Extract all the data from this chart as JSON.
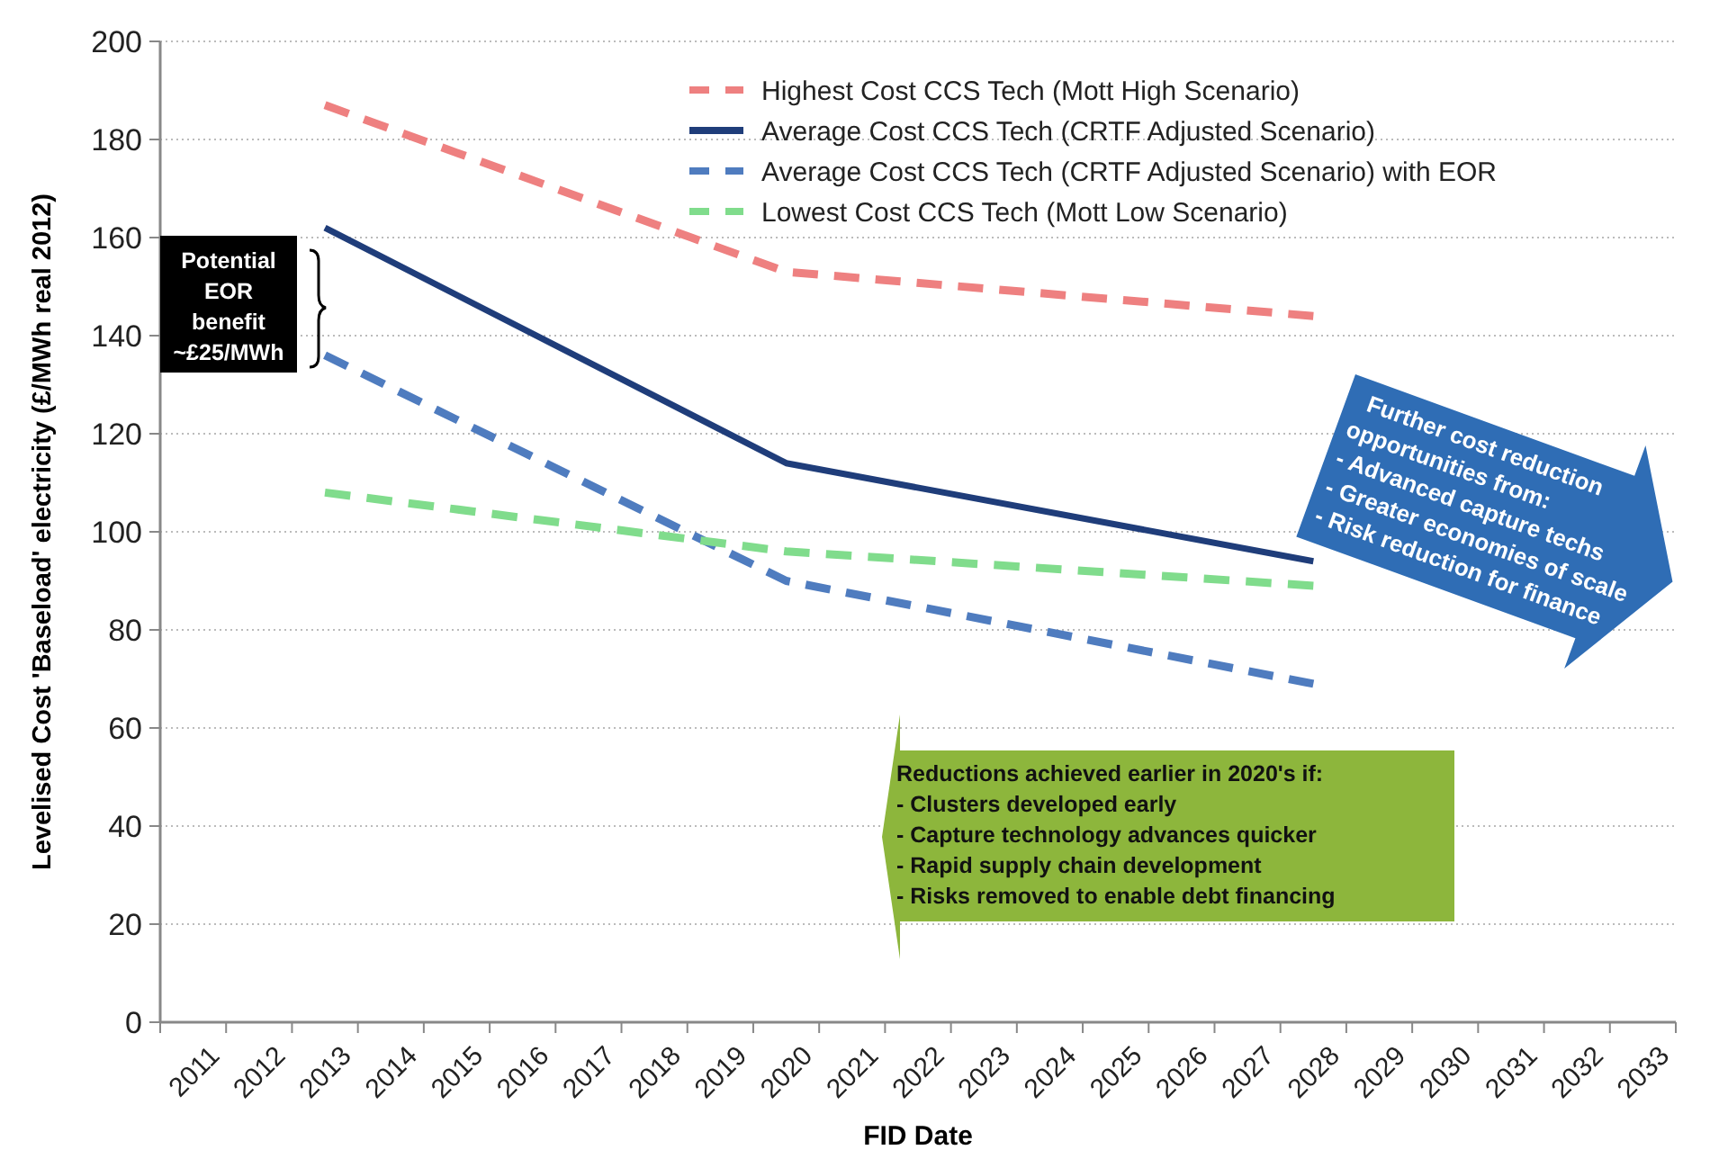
{
  "chart_data": {
    "type": "line",
    "xlabel": "FID Date",
    "ylabel": "Levelised Cost 'Baseload' electricity (£/MWh real 2012)",
    "xlim": [
      2010.5,
      2033.5
    ],
    "xticks": [
      2011,
      2012,
      2013,
      2014,
      2015,
      2016,
      2017,
      2018,
      2019,
      2020,
      2021,
      2022,
      2023,
      2024,
      2025,
      2026,
      2027,
      2028,
      2029,
      2030,
      2031,
      2032,
      2033
    ],
    "ylim": [
      0,
      200
    ],
    "yticks": [
      0,
      20,
      40,
      60,
      80,
      100,
      120,
      140,
      160,
      180,
      200
    ],
    "grid": "y",
    "legend": "top right",
    "marker": "none",
    "series": [
      {
        "name": "Highest Cost CCS Tech (Mott High Scenario)",
        "color": "#ee8080",
        "line_style": "dashed",
        "x": [
          2013,
          2020,
          2028
        ],
        "values": [
          187,
          153,
          144
        ]
      },
      {
        "name": "Average Cost CCS Tech (CRTF Adjusted Scenario)",
        "color": "#1f3d7a",
        "line_style": "solid",
        "x": [
          2013,
          2020,
          2028
        ],
        "values": [
          162,
          114,
          94
        ]
      },
      {
        "name": "Average Cost CCS Tech (CRTF Adjusted Scenario) with EOR",
        "color": "#4f7cbf",
        "line_style": "dashed",
        "x": [
          2013,
          2020,
          2028
        ],
        "values": [
          136,
          90,
          69
        ]
      },
      {
        "name": "Lowest Cost CCS Tech (Mott Low Scenario)",
        "color": "#80dc8c",
        "line_style": "dashed",
        "x": [
          2013,
          2020,
          2028
        ],
        "values": [
          108,
          96,
          89
        ]
      }
    ],
    "annotations": [
      "Potential\nEOR\nbenefit\n~£25/MWh",
      "Further cost reduction\nopportunities from:\n- Advanced capture techs\n- Greater economies of scale\n- Risk reduction for finance",
      "Reductions achieved earlier in 2020's if:\n- Clusters developed early\n- Capture technology advances quicker\n- Rapid supply chain development\n- Risks removed to enable debt financing"
    ]
  }
}
